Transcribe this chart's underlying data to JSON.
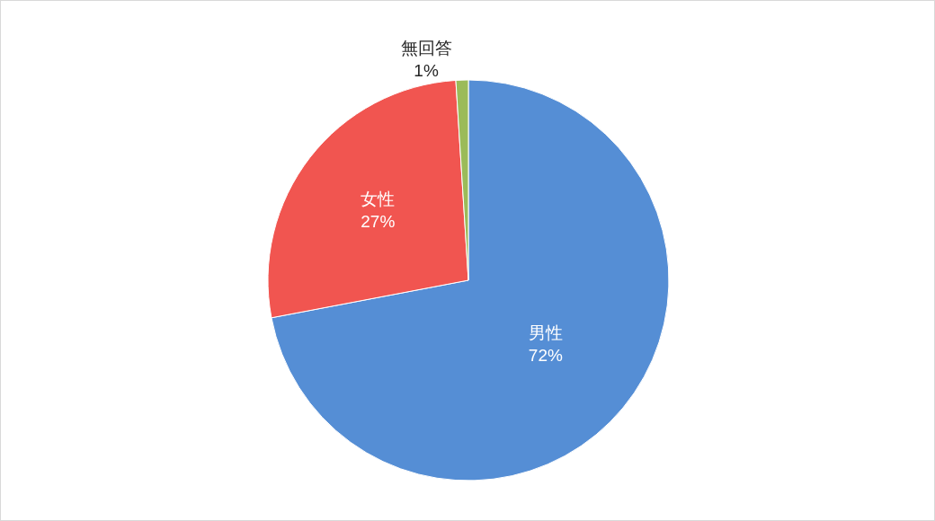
{
  "chart_data": {
    "type": "pie",
    "categories": [
      "男性",
      "女性",
      "無回答"
    ],
    "values": [
      72,
      27,
      1
    ],
    "value_labels": [
      "72%",
      "27%",
      "1%"
    ],
    "colors": [
      "#558ed5",
      "#f15550",
      "#9bbb59"
    ],
    "legend": false
  }
}
